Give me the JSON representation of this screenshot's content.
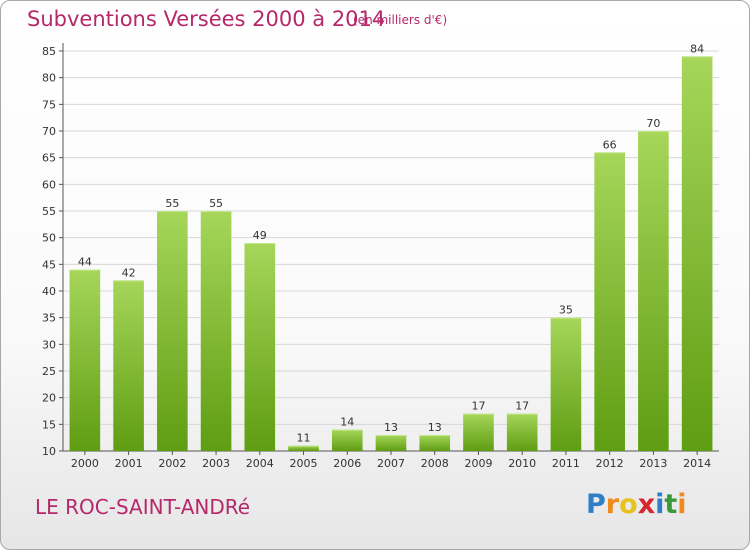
{
  "title": "Subventions Versées 2000 à 2014",
  "subtitle": "(en milliers d'€)",
  "commune": "LE ROC-SAINT-ANDRé",
  "logo": {
    "letters": [
      "P",
      "r",
      "o",
      "x",
      "i",
      "t",
      "i"
    ],
    "colors": [
      "#2f7fc8",
      "#f08a1c",
      "#e8c21a",
      "#d8262e",
      "#2f7fc8",
      "#3a9a3a",
      "#f08a1c"
    ]
  },
  "colors": {
    "bar_top": "#a6d65a",
    "bar_bottom": "#5f9d12",
    "title": "#b5286a",
    "grid": "#d7d7d7"
  },
  "chart_data": {
    "type": "bar",
    "categories": [
      "2000",
      "2001",
      "2002",
      "2003",
      "2004",
      "2005",
      "2006",
      "2007",
      "2008",
      "2009",
      "2010",
      "2011",
      "2012",
      "2013",
      "2014"
    ],
    "values": [
      44,
      42,
      55,
      55,
      49,
      11,
      14,
      13,
      13,
      17,
      17,
      35,
      66,
      70,
      84
    ],
    "title": "Subventions Versées 2000 à 2014",
    "xlabel": "",
    "ylabel": "",
    "ylim": [
      10,
      85
    ],
    "yticks": [
      10,
      15,
      20,
      25,
      30,
      35,
      40,
      45,
      50,
      55,
      60,
      65,
      70,
      75,
      80,
      85
    ],
    "grid": true
  }
}
